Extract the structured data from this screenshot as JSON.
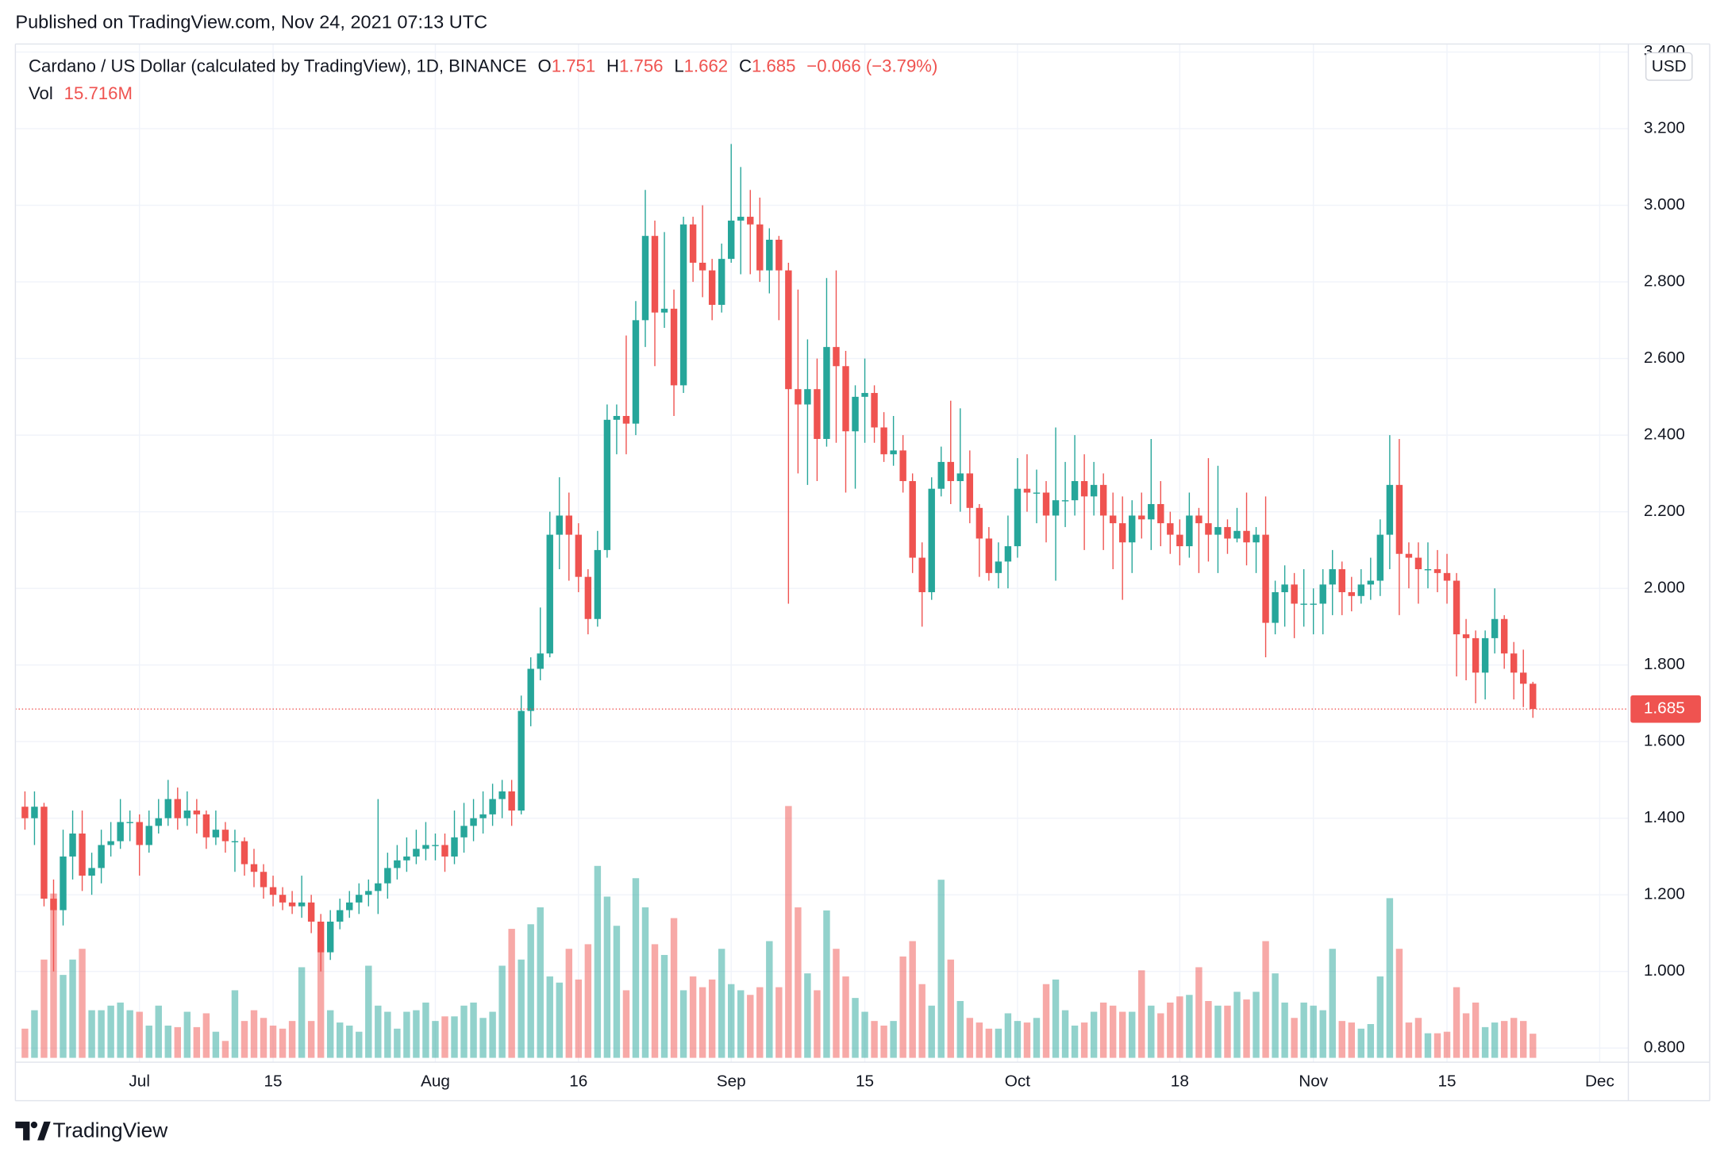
{
  "header": {
    "published": "Published on TradingView.com, Nov 24, 2021 07:13 UTC",
    "brand": "TradingView"
  },
  "chart_data": {
    "type": "candlestick",
    "title": "Cardano / US Dollar (calculated by TradingView), 1D, BINANCE",
    "currency": "USD",
    "ohlc_labels": [
      "O",
      "H",
      "L",
      "C"
    ],
    "change": "−0.066 (−3.79%)",
    "volume_title": "Vol",
    "last_volume_label": "15.716M",
    "up_color": "#26a69a",
    "down_color": "#ef5350",
    "grid": true,
    "x": [
      "06-19",
      "06-20",
      "06-21",
      "06-22",
      "06-23",
      "06-24",
      "06-25",
      "06-26",
      "06-27",
      "06-28",
      "06-29",
      "06-30",
      "07-01",
      "07-02",
      "07-03",
      "07-04",
      "07-05",
      "07-06",
      "07-07",
      "07-08",
      "07-09",
      "07-10",
      "07-11",
      "07-12",
      "07-13",
      "07-14",
      "07-15",
      "07-16",
      "07-17",
      "07-18",
      "07-19",
      "07-20",
      "07-21",
      "07-22",
      "07-23",
      "07-24",
      "07-25",
      "07-26",
      "07-27",
      "07-28",
      "07-29",
      "07-30",
      "07-31",
      "08-01",
      "08-02",
      "08-03",
      "08-04",
      "08-05",
      "08-06",
      "08-07",
      "08-08",
      "08-09",
      "08-10",
      "08-11",
      "08-12",
      "08-13",
      "08-14",
      "08-15",
      "08-16",
      "08-17",
      "08-18",
      "08-19",
      "08-20",
      "08-21",
      "08-22",
      "08-23",
      "08-24",
      "08-25",
      "08-26",
      "08-27",
      "08-28",
      "08-29",
      "08-30",
      "08-31",
      "09-01",
      "09-02",
      "09-03",
      "09-04",
      "09-05",
      "09-06",
      "09-07",
      "09-08",
      "09-09",
      "09-10",
      "09-11",
      "09-12",
      "09-13",
      "09-14",
      "09-15",
      "09-16",
      "09-17",
      "09-18",
      "09-19",
      "09-20",
      "09-21",
      "09-22",
      "09-23",
      "09-24",
      "09-25",
      "09-26",
      "09-27",
      "09-28",
      "09-29",
      "09-30",
      "10-01",
      "10-02",
      "10-03",
      "10-04",
      "10-05",
      "10-06",
      "10-07",
      "10-08",
      "10-09",
      "10-10",
      "10-11",
      "10-12",
      "10-13",
      "10-14",
      "10-15",
      "10-16",
      "10-17",
      "10-18",
      "10-19",
      "10-20",
      "10-21",
      "10-22",
      "10-23",
      "10-24",
      "10-25",
      "10-26",
      "10-27",
      "10-28",
      "10-29",
      "10-30",
      "10-31",
      "11-01",
      "11-02",
      "11-03",
      "11-04",
      "11-05",
      "11-06",
      "11-07",
      "11-08",
      "11-09",
      "11-10",
      "11-11",
      "11-12",
      "11-13",
      "11-14",
      "11-15",
      "11-16",
      "11-17",
      "11-18",
      "11-19",
      "11-20",
      "11-21",
      "11-22",
      "11-23",
      "11-24"
    ],
    "open": [
      1.43,
      1.4,
      1.43,
      1.19,
      1.16,
      1.3,
      1.36,
      1.25,
      1.27,
      1.33,
      1.34,
      1.39,
      1.39,
      1.33,
      1.38,
      1.4,
      1.45,
      1.4,
      1.42,
      1.41,
      1.35,
      1.37,
      1.34,
      1.34,
      1.28,
      1.26,
      1.22,
      1.2,
      1.18,
      1.17,
      1.18,
      1.13,
      1.05,
      1.13,
      1.16,
      1.18,
      1.2,
      1.21,
      1.23,
      1.27,
      1.29,
      1.3,
      1.32,
      1.33,
      1.33,
      1.3,
      1.35,
      1.38,
      1.4,
      1.41,
      1.45,
      1.47,
      1.42,
      1.68,
      1.79,
      1.83,
      2.14,
      2.19,
      2.14,
      2.03,
      1.92,
      2.1,
      2.44,
      2.45,
      2.43,
      2.7,
      2.92,
      2.72,
      2.73,
      2.53,
      2.95,
      2.85,
      2.83,
      2.74,
      2.86,
      2.96,
      2.97,
      2.95,
      2.83,
      2.91,
      2.83,
      2.52,
      2.48,
      2.52,
      2.39,
      2.63,
      2.58,
      2.41,
      2.5,
      2.51,
      2.42,
      2.35,
      2.36,
      2.28,
      2.08,
      1.99,
      2.26,
      2.33,
      2.28,
      2.3,
      2.21,
      2.13,
      2.04,
      2.07,
      2.11,
      2.26,
      2.25,
      2.25,
      2.19,
      2.23,
      2.23,
      2.28,
      2.24,
      2.27,
      2.19,
      2.17,
      2.12,
      2.19,
      2.18,
      2.22,
      2.17,
      2.14,
      2.11,
      2.19,
      2.17,
      2.14,
      2.16,
      2.13,
      2.15,
      2.12,
      2.14,
      1.91,
      1.99,
      2.01,
      1.96,
      1.96,
      1.96,
      2.01,
      2.05,
      1.99,
      1.98,
      2.01,
      2.02,
      2.14,
      2.27,
      2.09,
      2.08,
      2.05,
      2.05,
      2.04,
      2.02,
      1.88,
      1.87,
      1.78,
      1.87,
      1.92,
      1.83,
      1.78,
      1.751
    ],
    "high": [
      1.47,
      1.47,
      1.44,
      1.24,
      1.37,
      1.42,
      1.42,
      1.31,
      1.37,
      1.39,
      1.45,
      1.42,
      1.41,
      1.42,
      1.45,
      1.5,
      1.48,
      1.47,
      1.45,
      1.42,
      1.42,
      1.39,
      1.37,
      1.35,
      1.32,
      1.28,
      1.25,
      1.22,
      1.21,
      1.25,
      1.2,
      1.15,
      1.16,
      1.19,
      1.21,
      1.23,
      1.24,
      1.45,
      1.31,
      1.33,
      1.35,
      1.37,
      1.39,
      1.36,
      1.36,
      1.42,
      1.44,
      1.45,
      1.47,
      1.49,
      1.5,
      1.5,
      1.72,
      1.82,
      1.95,
      2.2,
      2.29,
      2.25,
      2.17,
      2.05,
      2.15,
      2.48,
      2.48,
      2.66,
      2.75,
      3.04,
      2.96,
      2.93,
      2.78,
      2.97,
      2.97,
      3.0,
      2.86,
      2.9,
      3.16,
      3.1,
      3.04,
      3.02,
      2.94,
      2.92,
      2.85,
      2.78,
      2.65,
      2.6,
      2.81,
      2.83,
      2.62,
      2.53,
      2.6,
      2.53,
      2.46,
      2.45,
      2.4,
      2.3,
      2.12,
      2.29,
      2.37,
      2.49,
      2.47,
      2.36,
      2.22,
      2.16,
      2.12,
      2.19,
      2.34,
      2.35,
      2.31,
      2.28,
      2.42,
      2.33,
      2.4,
      2.35,
      2.33,
      2.3,
      2.25,
      2.24,
      2.23,
      2.25,
      2.39,
      2.28,
      2.2,
      2.18,
      2.25,
      2.21,
      2.34,
      2.32,
      2.18,
      2.21,
      2.25,
      2.16,
      2.24,
      2.02,
      2.06,
      2.04,
      2.05,
      2.0,
      2.05,
      2.1,
      2.07,
      2.03,
      2.05,
      2.08,
      2.18,
      2.4,
      2.39,
      2.12,
      2.12,
      2.12,
      2.1,
      2.09,
      2.04,
      1.92,
      1.89,
      1.89,
      2.0,
      1.93,
      1.86,
      1.84,
      1.756
    ],
    "low": [
      1.37,
      1.33,
      1.17,
      1.0,
      1.12,
      1.24,
      1.21,
      1.2,
      1.23,
      1.3,
      1.32,
      1.34,
      1.25,
      1.31,
      1.36,
      1.38,
      1.37,
      1.38,
      1.36,
      1.32,
      1.33,
      1.31,
      1.26,
      1.25,
      1.22,
      1.19,
      1.17,
      1.16,
      1.15,
      1.14,
      1.1,
      1.0,
      1.03,
      1.11,
      1.14,
      1.15,
      1.17,
      1.15,
      1.19,
      1.24,
      1.26,
      1.28,
      1.29,
      1.29,
      1.26,
      1.28,
      1.31,
      1.34,
      1.36,
      1.38,
      1.4,
      1.38,
      1.41,
      1.64,
      1.76,
      1.82,
      2.05,
      2.02,
      1.99,
      1.88,
      1.9,
      2.08,
      2.35,
      2.35,
      2.4,
      2.63,
      2.58,
      2.68,
      2.45,
      2.51,
      2.8,
      2.76,
      2.7,
      2.72,
      2.85,
      2.82,
      2.82,
      2.8,
      2.77,
      2.7,
      1.96,
      2.3,
      2.27,
      2.28,
      2.37,
      2.38,
      2.25,
      2.26,
      2.38,
      2.38,
      2.33,
      2.32,
      2.25,
      2.04,
      1.9,
      1.97,
      2.24,
      2.22,
      2.2,
      2.17,
      2.03,
      2.02,
      2.0,
      2.0,
      2.08,
      2.2,
      2.17,
      2.12,
      2.02,
      2.16,
      2.19,
      2.1,
      2.19,
      2.1,
      2.05,
      1.97,
      2.04,
      2.13,
      2.1,
      2.11,
      2.09,
      2.06,
      2.08,
      2.04,
      2.07,
      2.04,
      2.09,
      2.12,
      2.06,
      2.04,
      1.82,
      1.88,
      1.9,
      1.87,
      1.9,
      1.88,
      1.88,
      1.93,
      1.93,
      1.94,
      1.96,
      1.97,
      1.98,
      2.05,
      1.93,
      2.0,
      1.96,
      2.0,
      1.99,
      1.96,
      1.77,
      1.76,
      1.7,
      1.71,
      1.83,
      1.79,
      1.71,
      1.69,
      1.662
    ],
    "close": [
      1.4,
      1.43,
      1.19,
      1.16,
      1.3,
      1.36,
      1.25,
      1.27,
      1.33,
      1.34,
      1.39,
      1.39,
      1.33,
      1.38,
      1.4,
      1.45,
      1.4,
      1.42,
      1.41,
      1.35,
      1.37,
      1.34,
      1.34,
      1.28,
      1.26,
      1.22,
      1.2,
      1.18,
      1.17,
      1.18,
      1.13,
      1.05,
      1.13,
      1.16,
      1.18,
      1.2,
      1.21,
      1.23,
      1.27,
      1.29,
      1.3,
      1.32,
      1.33,
      1.33,
      1.3,
      1.35,
      1.38,
      1.4,
      1.41,
      1.45,
      1.47,
      1.42,
      1.68,
      1.79,
      1.83,
      2.14,
      2.19,
      2.14,
      2.03,
      1.92,
      2.1,
      2.44,
      2.45,
      2.43,
      2.7,
      2.92,
      2.72,
      2.73,
      2.53,
      2.95,
      2.85,
      2.83,
      2.74,
      2.86,
      2.96,
      2.97,
      2.95,
      2.83,
      2.91,
      2.83,
      2.52,
      2.48,
      2.52,
      2.39,
      2.63,
      2.58,
      2.41,
      2.5,
      2.51,
      2.42,
      2.35,
      2.36,
      2.28,
      2.08,
      1.99,
      2.26,
      2.33,
      2.28,
      2.3,
      2.21,
      2.13,
      2.04,
      2.07,
      2.11,
      2.26,
      2.25,
      2.25,
      2.19,
      2.23,
      2.23,
      2.28,
      2.24,
      2.27,
      2.19,
      2.17,
      2.12,
      2.19,
      2.18,
      2.22,
      2.17,
      2.14,
      2.11,
      2.19,
      2.17,
      2.14,
      2.16,
      2.13,
      2.15,
      2.12,
      2.14,
      1.91,
      1.99,
      2.01,
      1.96,
      1.96,
      1.96,
      2.01,
      2.05,
      1.99,
      1.98,
      2.01,
      2.02,
      2.14,
      2.27,
      2.09,
      2.08,
      2.05,
      2.05,
      2.04,
      2.02,
      1.88,
      1.87,
      1.78,
      1.87,
      1.92,
      1.83,
      1.78,
      1.751,
      1.685
    ],
    "volume": [
      19,
      31,
      64,
      107,
      54,
      64,
      71,
      31,
      31,
      34,
      36,
      31,
      30,
      21,
      34,
      21,
      20,
      30,
      20,
      29,
      17,
      11,
      44,
      24,
      31,
      26,
      21,
      19,
      24,
      59,
      24,
      76,
      31,
      23,
      21,
      17,
      60,
      34,
      30,
      19,
      30,
      31,
      36,
      24,
      27,
      27,
      34,
      36,
      26,
      30,
      60,
      84,
      64,
      87,
      98,
      53,
      49,
      71,
      51,
      74,
      125,
      105,
      86,
      44,
      117,
      98,
      74,
      67,
      91,
      44,
      53,
      46,
      51,
      71,
      48,
      44,
      41,
      46,
      76,
      46,
      164,
      98,
      55,
      44,
      96,
      71,
      53,
      39,
      30,
      24,
      21,
      24,
      66,
      76,
      48,
      34,
      116,
      64,
      37,
      26,
      23,
      19,
      19,
      29,
      24,
      23,
      26,
      48,
      51,
      31,
      21,
      23,
      30,
      36,
      34,
      30,
      30,
      57,
      34,
      29,
      36,
      40,
      41,
      59,
      37,
      34,
      34,
      43,
      38,
      43,
      76,
      55,
      36,
      26,
      36,
      34,
      31,
      71,
      24,
      23,
      19,
      22,
      53,
      104,
      71,
      23,
      26,
      16,
      16,
      17,
      46,
      29,
      36,
      20,
      23,
      24,
      26,
      24,
      15.716
    ],
    "ylim": [
      0.763,
      3.421
    ],
    "yticks": [
      {
        "value": 0.8,
        "label": "0.800"
      },
      {
        "value": 1.0,
        "label": "1.000"
      },
      {
        "value": 1.2,
        "label": "1.200"
      },
      {
        "value": 1.4,
        "label": "1.400"
      },
      {
        "value": 1.6,
        "label": "1.600"
      },
      {
        "value": 1.8,
        "label": "1.800"
      },
      {
        "value": 2.0,
        "label": "2.000"
      },
      {
        "value": 2.2,
        "label": "2.200"
      },
      {
        "value": 2.4,
        "label": "2.400"
      },
      {
        "value": 2.6,
        "label": "2.600"
      },
      {
        "value": 2.8,
        "label": "2.800"
      },
      {
        "value": 3.0,
        "label": "3.000"
      },
      {
        "value": 3.2,
        "label": "3.200"
      },
      {
        "value": 3.4,
        "label": "3.400"
      }
    ],
    "xlim": [
      "06-18",
      "12-04"
    ],
    "xticks": [
      {
        "value": "07-01",
        "label": "Jul"
      },
      {
        "value": "07-15",
        "label": "15"
      },
      {
        "value": "08-01",
        "label": "Aug"
      },
      {
        "value": "08-16",
        "label": "16"
      },
      {
        "value": "09-01",
        "label": "Sep"
      },
      {
        "value": "09-15",
        "label": "15"
      },
      {
        "value": "10-01",
        "label": "Oct"
      },
      {
        "value": "10-18",
        "label": "18"
      },
      {
        "value": "11-01",
        "label": "Nov"
      },
      {
        "value": "11-15",
        "label": "15"
      },
      {
        "value": "12-01",
        "label": "Dec"
      }
    ]
  }
}
